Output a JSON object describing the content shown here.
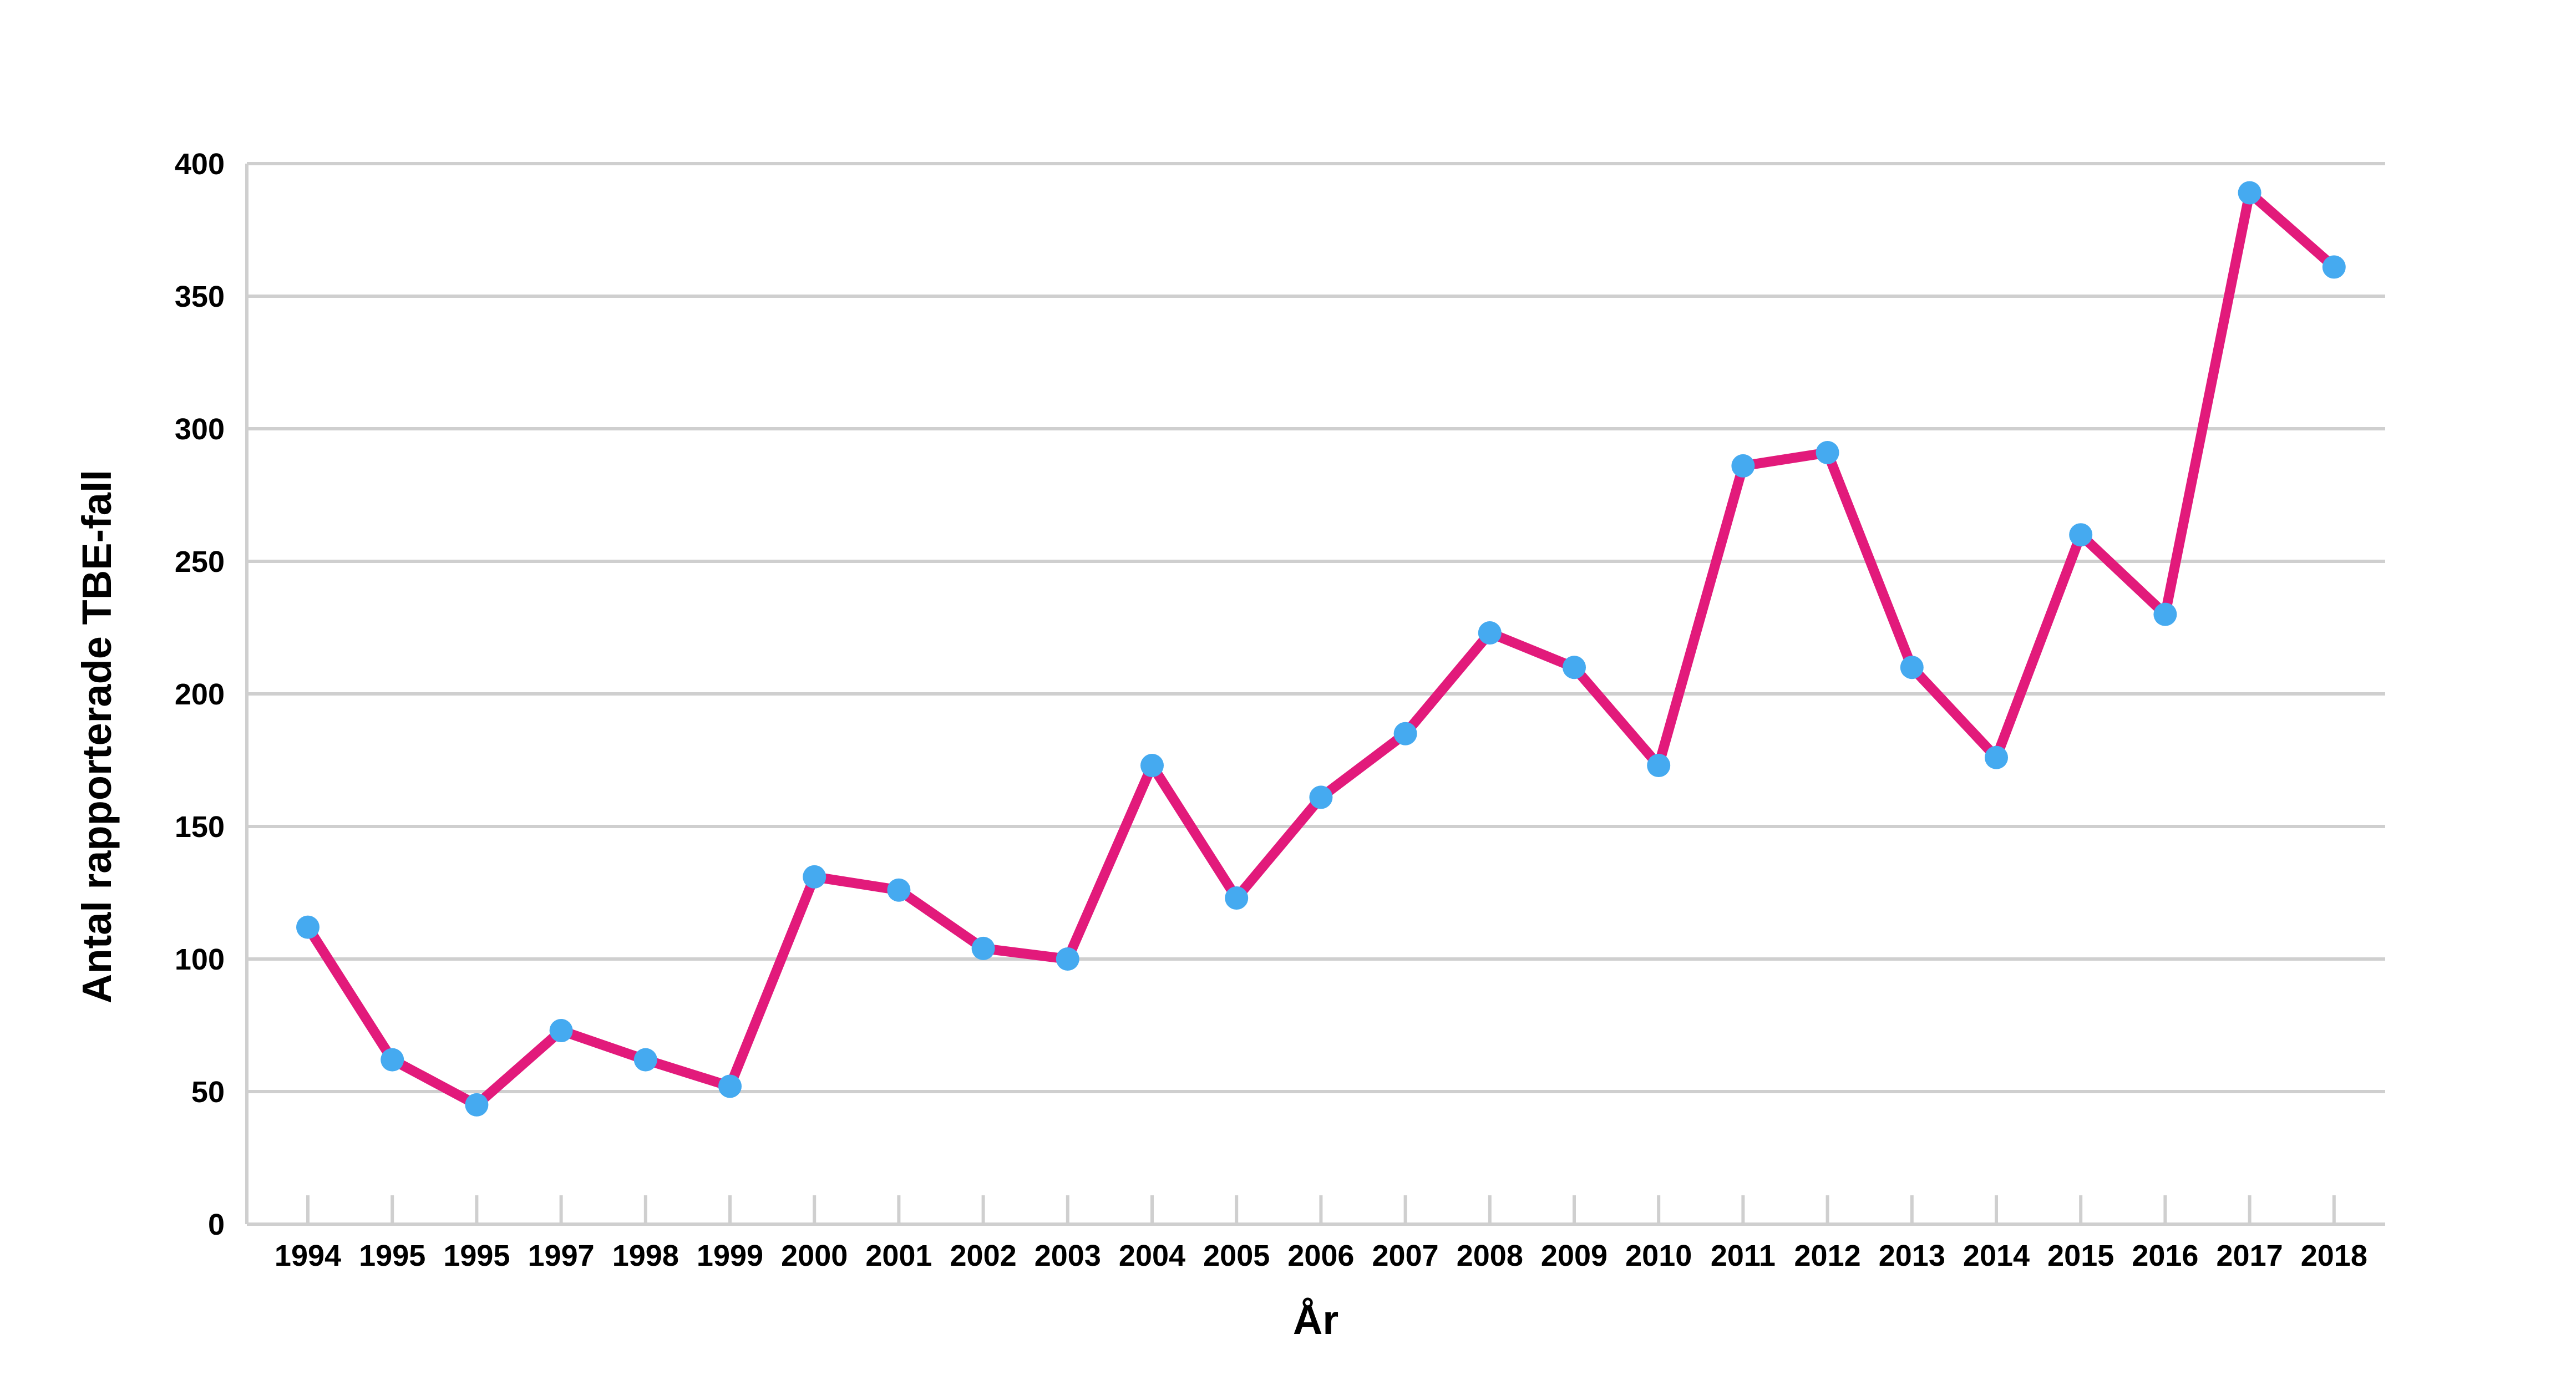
{
  "chart_data": {
    "type": "line",
    "title": "",
    "xlabel": "År",
    "ylabel": "Antal rapporterade TBE-fall",
    "ylim": [
      0,
      400
    ],
    "yticks": [
      0,
      50,
      100,
      150,
      200,
      250,
      300,
      350,
      400
    ],
    "grid": true,
    "legend": "none",
    "categories": [
      "1994",
      "1995",
      "1995",
      "1997",
      "1998",
      "1999",
      "2000",
      "2001",
      "2002",
      "2003",
      "2004",
      "2005",
      "2006",
      "2007",
      "2008",
      "2009",
      "2010",
      "2011",
      "2012",
      "2013",
      "2014",
      "2015",
      "2016",
      "2017",
      "2018"
    ],
    "series": [
      {
        "values": [
          112,
          62,
          45,
          73,
          62,
          52,
          131,
          126,
          104,
          100,
          173,
          123,
          161,
          185,
          223,
          210,
          173,
          286,
          291,
          210,
          176,
          260,
          230,
          389,
          361
        ],
        "line_color": "#e21a7b",
        "marker_color": "#45aaf0"
      }
    ]
  }
}
